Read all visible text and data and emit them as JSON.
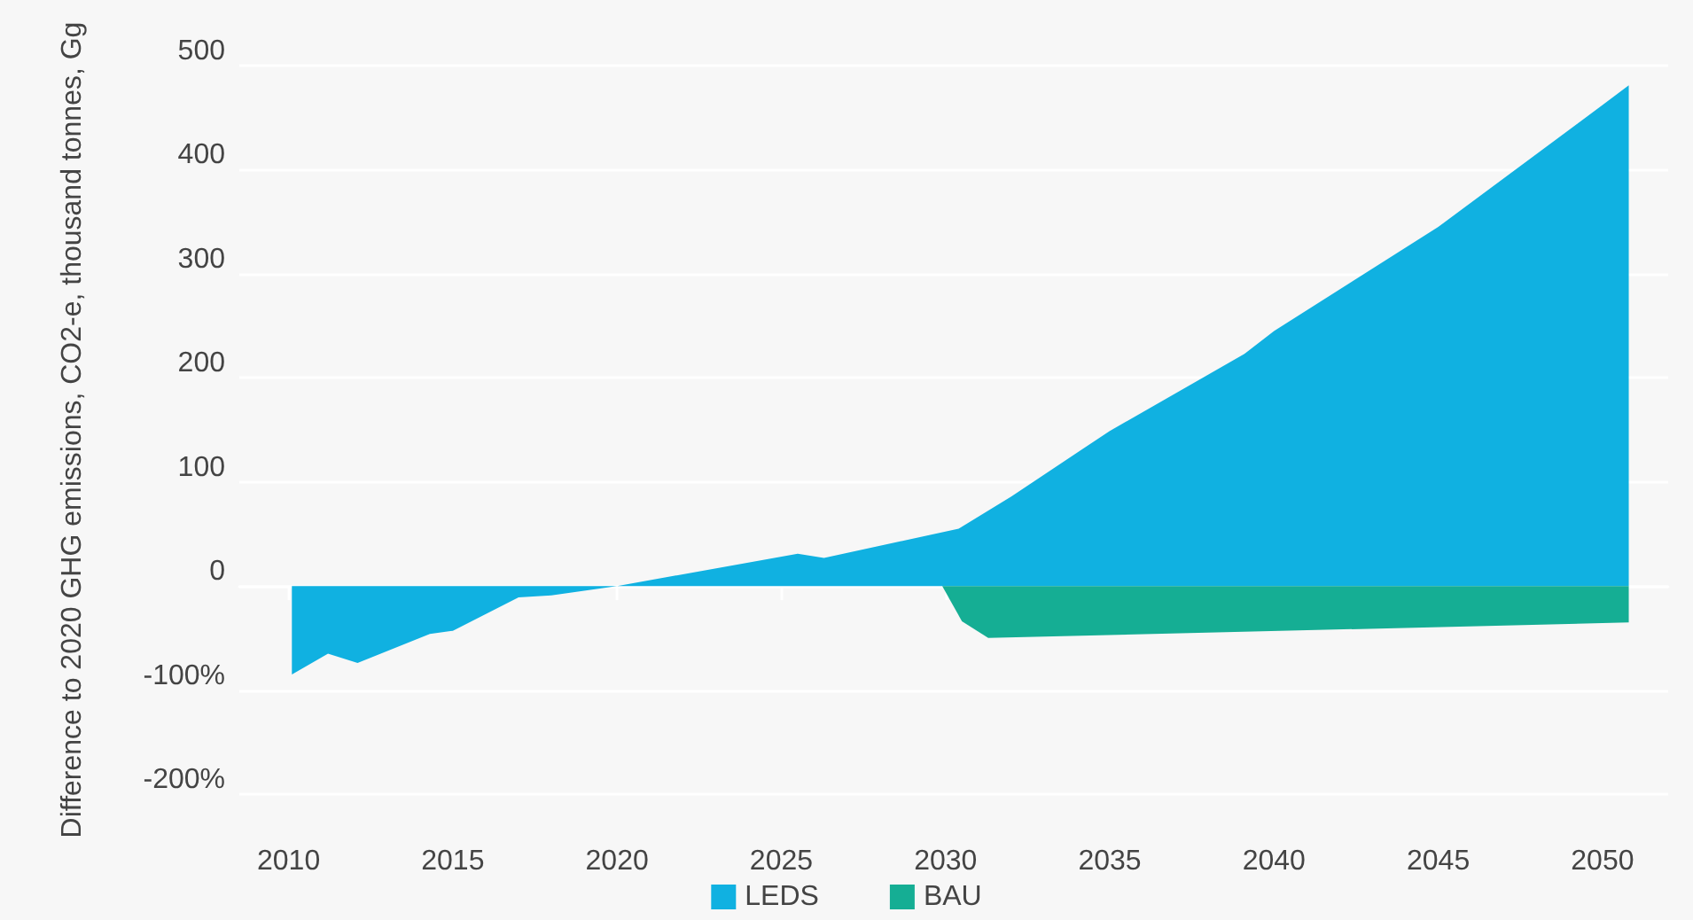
{
  "chart_data": {
    "type": "area",
    "ylabel": "Difference to 2020 GHG emissions, CO2-e, thousand tonnes, Gg",
    "series": [
      {
        "name": "LEDS",
        "color": "#10b1e1",
        "x": [
          2010.1,
          2011.2,
          2012.1,
          2014.3,
          2015,
          2017,
          2018,
          2020,
          2025.5,
          2026.3,
          2030.4,
          2032,
          2035,
          2039.1,
          2040,
          2045,
          2050,
          2050.8
        ],
        "values": [
          -85,
          -65,
          -74,
          -46,
          -43,
          -11,
          -9,
          0,
          31,
          27,
          55,
          86,
          149,
          223,
          245,
          345,
          462,
          481
        ]
      },
      {
        "name": "BAU",
        "color": "#15ae94",
        "x": [
          2029.9,
          2030.5,
          2031.3,
          2050.8
        ],
        "values": [
          0,
          -34,
          -50,
          -35
        ]
      }
    ],
    "xlim": [
      2008.5,
      2052
    ],
    "xticks": [
      2010,
      2015,
      2020,
      2025,
      2030,
      2035,
      2040,
      2045,
      2050
    ],
    "ylim": [
      -200,
      500
    ],
    "yticks": [
      500,
      400,
      300,
      200,
      100,
      0,
      {
        "value": -100,
        "label": "-100%"
      },
      {
        "value": -200,
        "label": "-200%"
      }
    ],
    "grid": "y",
    "legend": "bottom"
  }
}
